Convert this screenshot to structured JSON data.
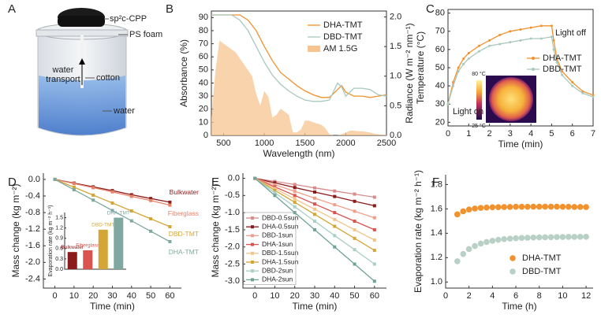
{
  "diagram": {
    "panel_label": "A",
    "labels": {
      "top_material": "sp²c-CPP",
      "foam": "PS foam",
      "transport": [
        "water",
        "transport"
      ],
      "wick": "cotton",
      "liquid": "water"
    }
  },
  "chart_data": [
    {
      "type": "line",
      "panel_label": "B",
      "xlabel": "Wavelength (nm)",
      "ylabel": "Absorbance (%)",
      "y2label": "Radiance (W m⁻² nm⁻¹)",
      "xlim": [
        350,
        2500
      ],
      "xticks": [
        500,
        1000,
        1500,
        2000,
        2500
      ],
      "ylim": [
        0,
        95
      ],
      "yticks": [
        0,
        10,
        20,
        30,
        40,
        50,
        60,
        70,
        80,
        90
      ],
      "y2lim": [
        0,
        2.1
      ],
      "y2ticks": [
        {
          "value": 0,
          "label": "0.0"
        },
        0.5,
        {
          "value": 1,
          "label": "1.0"
        },
        1.5,
        {
          "value": 2,
          "label": "2.0"
        }
      ],
      "marker": "none",
      "legend": "upper right",
      "series": [
        {
          "name": "DHA-TMT",
          "color": "#f0922e",
          "x": [
            350,
            400,
            500,
            600,
            700,
            800,
            900,
            1000,
            1100,
            1200,
            1300,
            1400,
            1500,
            1600,
            1700,
            1800,
            1900,
            1950,
            2000,
            2100,
            2200,
            2300,
            2400,
            2500
          ],
          "values": [
            92,
            92,
            92,
            92,
            92,
            88,
            80,
            68,
            57,
            48,
            43,
            38,
            34,
            31,
            29,
            29,
            35,
            38,
            33,
            30,
            30,
            29,
            30,
            31
          ]
        },
        {
          "name": "DBD-TMT",
          "color": "#a9c9bd",
          "x": [
            350,
            400,
            500,
            600,
            700,
            800,
            900,
            1000,
            1100,
            1200,
            1300,
            1400,
            1500,
            1600,
            1700,
            1800,
            1900,
            1950,
            2000,
            2100,
            2200,
            2300,
            2400,
            2500
          ],
          "values": [
            92,
            92,
            92,
            92,
            88,
            80,
            68,
            56,
            46,
            39,
            34,
            30,
            27,
            26,
            26,
            27,
            40,
            37,
            30,
            36,
            36,
            35,
            31,
            30
          ]
        },
        {
          "name": "AM 1.5G",
          "color": "#f7c48f",
          "kind": "area",
          "axis": "y2",
          "x": [
            350,
            400,
            450,
            500,
            550,
            600,
            650,
            700,
            750,
            800,
            850,
            900,
            950,
            1000,
            1050,
            1100,
            1150,
            1200,
            1250,
            1300,
            1350,
            1400,
            1450,
            1500,
            1550,
            1600,
            1650,
            1700,
            1750,
            1800,
            1850,
            1900,
            1950,
            2000,
            2050,
            2100,
            2150,
            2200,
            2250,
            2300,
            2350,
            2400,
            2450,
            2500
          ],
          "values": [
            0.3,
            1.1,
            1.6,
            1.55,
            1.5,
            1.45,
            1.4,
            1.3,
            1.2,
            1.1,
            1.0,
            0.7,
            0.5,
            0.75,
            0.65,
            0.3,
            0.35,
            0.45,
            0.4,
            0.35,
            0.05,
            0.05,
            0.1,
            0.25,
            0.25,
            0.22,
            0.2,
            0.18,
            0.12,
            0.02,
            0,
            0,
            0.02,
            0.05,
            0.08,
            0.08,
            0.07,
            0.07,
            0.06,
            0.05,
            0.03,
            0.02,
            0.01,
            0.01
          ]
        }
      ]
    },
    {
      "type": "line",
      "panel_label": "C",
      "xlabel": "Time (min)",
      "ylabel": "Temperature (°C)",
      "xlim": [
        0,
        7
      ],
      "xticks": [
        0,
        1,
        2,
        3,
        4,
        5,
        6,
        7
      ],
      "ylim": [
        18,
        82
      ],
      "yticks": [
        20,
        30,
        40,
        50,
        60,
        70,
        80
      ],
      "marker": "circle",
      "legend": "center right",
      "x": [
        0,
        0.25,
        0.5,
        0.75,
        1,
        1.5,
        2,
        2.5,
        3,
        3.5,
        4,
        4.5,
        5,
        5.1,
        5.25,
        5.5,
        6,
        6.5,
        7
      ],
      "series": [
        {
          "name": "DHA-TMT",
          "color": "#f0922e",
          "values": [
            30,
            42,
            50,
            55,
            58,
            62,
            65,
            68,
            70,
            71,
            72,
            73,
            73,
            65,
            55,
            48,
            42,
            37,
            35
          ]
        },
        {
          "name": "DBD-TMT",
          "color": "#a9c9bd",
          "values": [
            30,
            40,
            48,
            52,
            55,
            59,
            62,
            63,
            64,
            65,
            66,
            66,
            67,
            60,
            53,
            46,
            40,
            36,
            34
          ]
        }
      ],
      "annotations": [
        "Light off",
        "Light on",
        "80 °C",
        "25 °C"
      ]
    },
    {
      "type": "line",
      "panel_label": "D",
      "xlabel": "Time (min)",
      "ylabel": "Mass change (kg m⁻²)",
      "xlim": [
        -6,
        66
      ],
      "xticks": [
        0,
        10,
        20,
        30,
        40,
        50,
        60
      ],
      "ylim": [
        -2.62,
        0.15
      ],
      "yticks": [
        {
          "value": 0,
          "label": "0.0"
        },
        -0.4,
        -0.8,
        -1.2,
        -1.6,
        {
          "value": -2,
          "label": "-2.0"
        },
        -2.4
      ],
      "marker": "square",
      "legend": "direct",
      "x": [
        0,
        10,
        20,
        30,
        40,
        50,
        60
      ],
      "series": [
        {
          "name": "Bulkwater",
          "color": "#8b1a1a",
          "values": [
            0,
            -0.09,
            -0.18,
            -0.27,
            -0.37,
            -0.46,
            -0.55
          ]
        },
        {
          "name": "Fiberglass",
          "color": "#e8836b",
          "values": [
            0,
            -0.1,
            -0.2,
            -0.3,
            -0.41,
            -0.51,
            -0.62
          ]
        },
        {
          "name": "DBD-TMT",
          "color": "#d4a637",
          "values": [
            0,
            -0.19,
            -0.38,
            -0.57,
            -0.76,
            -0.95,
            -1.14
          ]
        },
        {
          "name": "DHA-TMT",
          "color": "#7fa8a0",
          "values": [
            0,
            -0.25,
            -0.5,
            -0.75,
            -1.0,
            -1.25,
            -1.5
          ]
        }
      ],
      "inset": {
        "type": "bar",
        "ylabel": "Evaporation rate (kg m⁻² h⁻¹)",
        "ylim": [
          0,
          1.65
        ],
        "yticks": [
          {
            "value": 0,
            "label": "0.0"
          },
          0.3,
          0.6,
          0.9,
          1.2,
          1.5
        ],
        "categories": [
          "Bulkwater",
          "Fiberglass",
          "DBD-TMT",
          "DHA-TMT"
        ],
        "values": [
          0.5,
          0.55,
          1.15,
          1.5
        ],
        "colors": [
          "#8b1a1a",
          "#d9534f",
          "#d4a637",
          "#7fa8a0"
        ]
      }
    },
    {
      "type": "line",
      "panel_label": "E",
      "xlabel": "Time (min)",
      "ylabel": "Mass change (kg m⁻²)",
      "xlim": [
        -6,
        66
      ],
      "xticks": [
        0,
        10,
        20,
        30,
        40,
        50,
        60
      ],
      "ylim": [
        -3.2,
        0.15
      ],
      "yticks": [
        {
          "value": 0,
          "label": "0.0"
        },
        -0.5,
        {
          "value": -1,
          "label": "-1.0"
        },
        -1.5,
        {
          "value": -2,
          "label": "-2.0"
        },
        -2.5,
        {
          "value": -3,
          "label": "-3.0"
        }
      ],
      "marker": "square",
      "legend": "lower left",
      "x": [
        0,
        10,
        20,
        30,
        40,
        50,
        60
      ],
      "series": [
        {
          "name": "DBD-0.5sun",
          "color": "#d98c8c",
          "values": [
            0,
            -0.09,
            -0.18,
            -0.28,
            -0.37,
            -0.46,
            -0.55
          ]
        },
        {
          "name": "DHA-0.5sun",
          "color": "#8b1a1a",
          "values": [
            0,
            -0.13,
            -0.27,
            -0.4,
            -0.53,
            -0.67,
            -0.8
          ]
        },
        {
          "name": "DBD-1sun",
          "color": "#f0a08a",
          "values": [
            0,
            -0.19,
            -0.38,
            -0.58,
            -0.77,
            -0.96,
            -1.15
          ]
        },
        {
          "name": "DHA-1sun",
          "color": "#d9534f",
          "values": [
            0,
            -0.25,
            -0.5,
            -0.75,
            -1.0,
            -1.25,
            -1.5
          ]
        },
        {
          "name": "DBD-1.5sun",
          "color": "#f2c48a",
          "values": [
            0,
            -0.3,
            -0.6,
            -0.9,
            -1.2,
            -1.5,
            -1.8
          ]
        },
        {
          "name": "DHA-1.5sun",
          "color": "#d4a637",
          "values": [
            0,
            -0.35,
            -0.7,
            -1.05,
            -1.4,
            -1.75,
            -2.1
          ]
        },
        {
          "name": "DBD-2sun",
          "color": "#a9cfc7",
          "values": [
            0,
            -0.42,
            -0.83,
            -1.25,
            -1.67,
            -2.08,
            -2.5
          ]
        },
        {
          "name": "DHA-2sun",
          "color": "#6fa396",
          "values": [
            0,
            -0.5,
            -1.0,
            -1.5,
            -2.0,
            -2.5,
            -3.0
          ]
        }
      ]
    },
    {
      "type": "scatter",
      "panel_label": "F",
      "xlabel": "Time (h)",
      "ylabel": "Evaporation rate (kg m⁻² h⁻¹)",
      "xlim": [
        0,
        12.6
      ],
      "xticks": [
        0,
        2,
        4,
        6,
        8,
        10,
        12
      ],
      "ylim": [
        0.95,
        1.88
      ],
      "yticks": [
        {
          "value": 1,
          "label": "1.0"
        },
        1.2,
        1.4,
        1.6,
        1.8
      ],
      "marker": "circle",
      "legend": "lower right",
      "x": [
        1,
        1.5,
        2,
        2.5,
        3,
        3.5,
        4,
        4.5,
        5,
        5.5,
        6,
        6.5,
        7,
        7.5,
        8,
        8.5,
        9,
        9.5,
        10,
        10.5,
        11,
        11.5,
        12
      ],
      "series": [
        {
          "name": "DHA-TMT",
          "color": "#f0922e",
          "values": [
            1.555,
            1.58,
            1.595,
            1.603,
            1.608,
            1.611,
            1.613,
            1.614,
            1.615,
            1.616,
            1.617,
            1.617,
            1.617,
            1.618,
            1.618,
            1.618,
            1.618,
            1.618,
            1.617,
            1.617,
            1.616,
            1.616,
            1.615
          ]
        },
        {
          "name": "DBD-TMT",
          "color": "#b8d0c6",
          "values": [
            1.17,
            1.23,
            1.27,
            1.295,
            1.315,
            1.328,
            1.338,
            1.346,
            1.352,
            1.356,
            1.359,
            1.361,
            1.363,
            1.365,
            1.366,
            1.367,
            1.368,
            1.369,
            1.369,
            1.37,
            1.37,
            1.371,
            1.371
          ]
        }
      ]
    }
  ]
}
